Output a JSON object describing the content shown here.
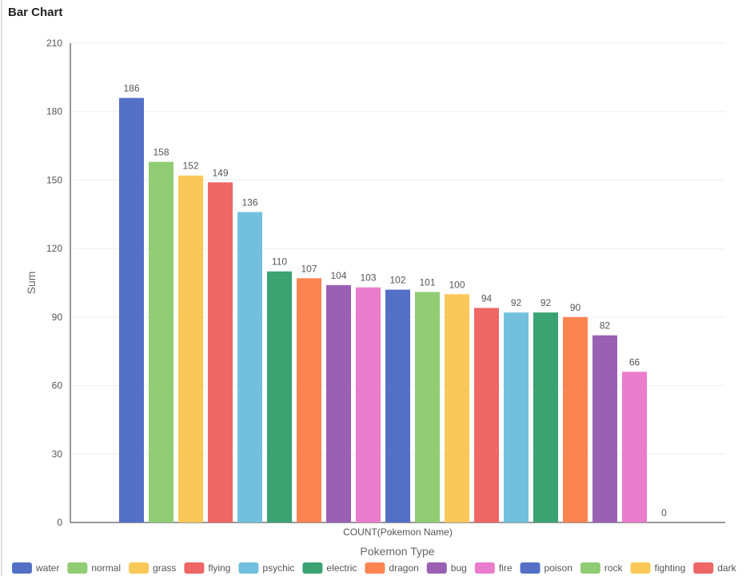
{
  "chart_data": {
    "type": "bar",
    "title": "Bar Chart",
    "x_label": "Pokemon Type",
    "y_label": "Sum",
    "categories": [
      "COUNT(Pokemon Name)"
    ],
    "ylim": [
      0,
      210
    ],
    "yticks": [
      0,
      30,
      60,
      90,
      120,
      150,
      180,
      210
    ],
    "grid": true,
    "series": [
      {
        "name": "water",
        "color": "#5470c6",
        "values": [
          186
        ]
      },
      {
        "name": "normal",
        "color": "#91cc75",
        "values": [
          158
        ]
      },
      {
        "name": "grass",
        "color": "#fac858",
        "values": [
          152
        ]
      },
      {
        "name": "flying",
        "color": "#ee6666",
        "values": [
          149
        ]
      },
      {
        "name": "psychic",
        "color": "#73c0de",
        "values": [
          136
        ]
      },
      {
        "name": "electric",
        "color": "#3ba272",
        "values": [
          110
        ]
      },
      {
        "name": "dragon",
        "color": "#fc8452",
        "values": [
          107
        ]
      },
      {
        "name": "bug",
        "color": "#9a60b4",
        "values": [
          104
        ]
      },
      {
        "name": "fire",
        "color": "#ea7ccc",
        "values": [
          103
        ]
      },
      {
        "name": "poison",
        "color": "#5470c6",
        "values": [
          102
        ]
      },
      {
        "name": "rock",
        "color": "#91cc75",
        "values": [
          101
        ]
      },
      {
        "name": "fighting",
        "color": "#fac858",
        "values": [
          100
        ]
      },
      {
        "name": "dark",
        "color": "#ee6666",
        "values": [
          94
        ]
      },
      {
        "name": null,
        "color": "#73c0de",
        "values": [
          92
        ]
      },
      {
        "name": null,
        "color": "#3ba272",
        "values": [
          92
        ]
      },
      {
        "name": null,
        "color": "#fc8452",
        "values": [
          90
        ]
      },
      {
        "name": null,
        "color": "#9a60b4",
        "values": [
          82
        ]
      },
      {
        "name": null,
        "color": "#ea7ccc",
        "values": [
          66
        ]
      },
      {
        "name": null,
        "color": "#5470c6",
        "values": [
          0
        ]
      }
    ]
  }
}
